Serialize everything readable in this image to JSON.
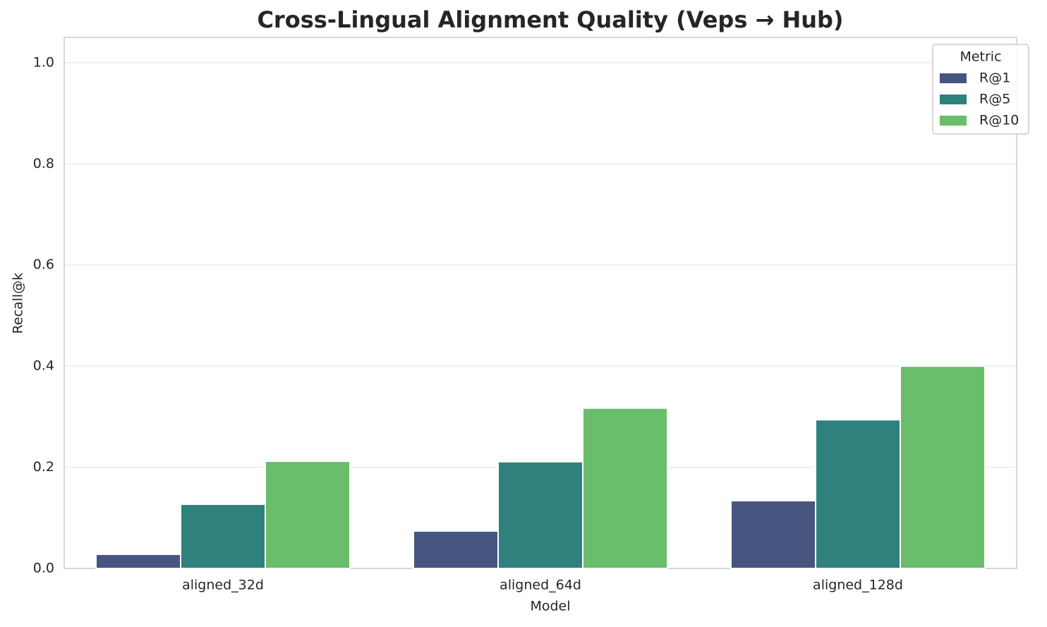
{
  "chart_data": {
    "type": "bar",
    "title": "Cross-Lingual Alignment Quality (Veps → Hub)",
    "x_label": "Model",
    "y_label": "Recall@k",
    "categories": [
      "aligned_32d",
      "aligned_64d",
      "aligned_128d"
    ],
    "series": [
      {
        "name": "R@1",
        "color": "#46557f",
        "values": [
          0.028,
          0.074,
          0.134
        ]
      },
      {
        "name": "R@5",
        "color": "#2e817c",
        "values": [
          0.127,
          0.211,
          0.294
        ]
      },
      {
        "name": "R@10",
        "color": "#6abd6a",
        "values": [
          0.212,
          0.317,
          0.4
        ]
      }
    ],
    "ylim": [
      0,
      1.05
    ],
    "yticks": [
      {
        "value": 0,
        "label": "0.0"
      },
      0.2,
      0.4,
      0.6,
      0.8,
      {
        "value": 1,
        "label": "1.0"
      }
    ],
    "grid": true,
    "legend_title": "Metric",
    "legend_position": "upper right"
  }
}
